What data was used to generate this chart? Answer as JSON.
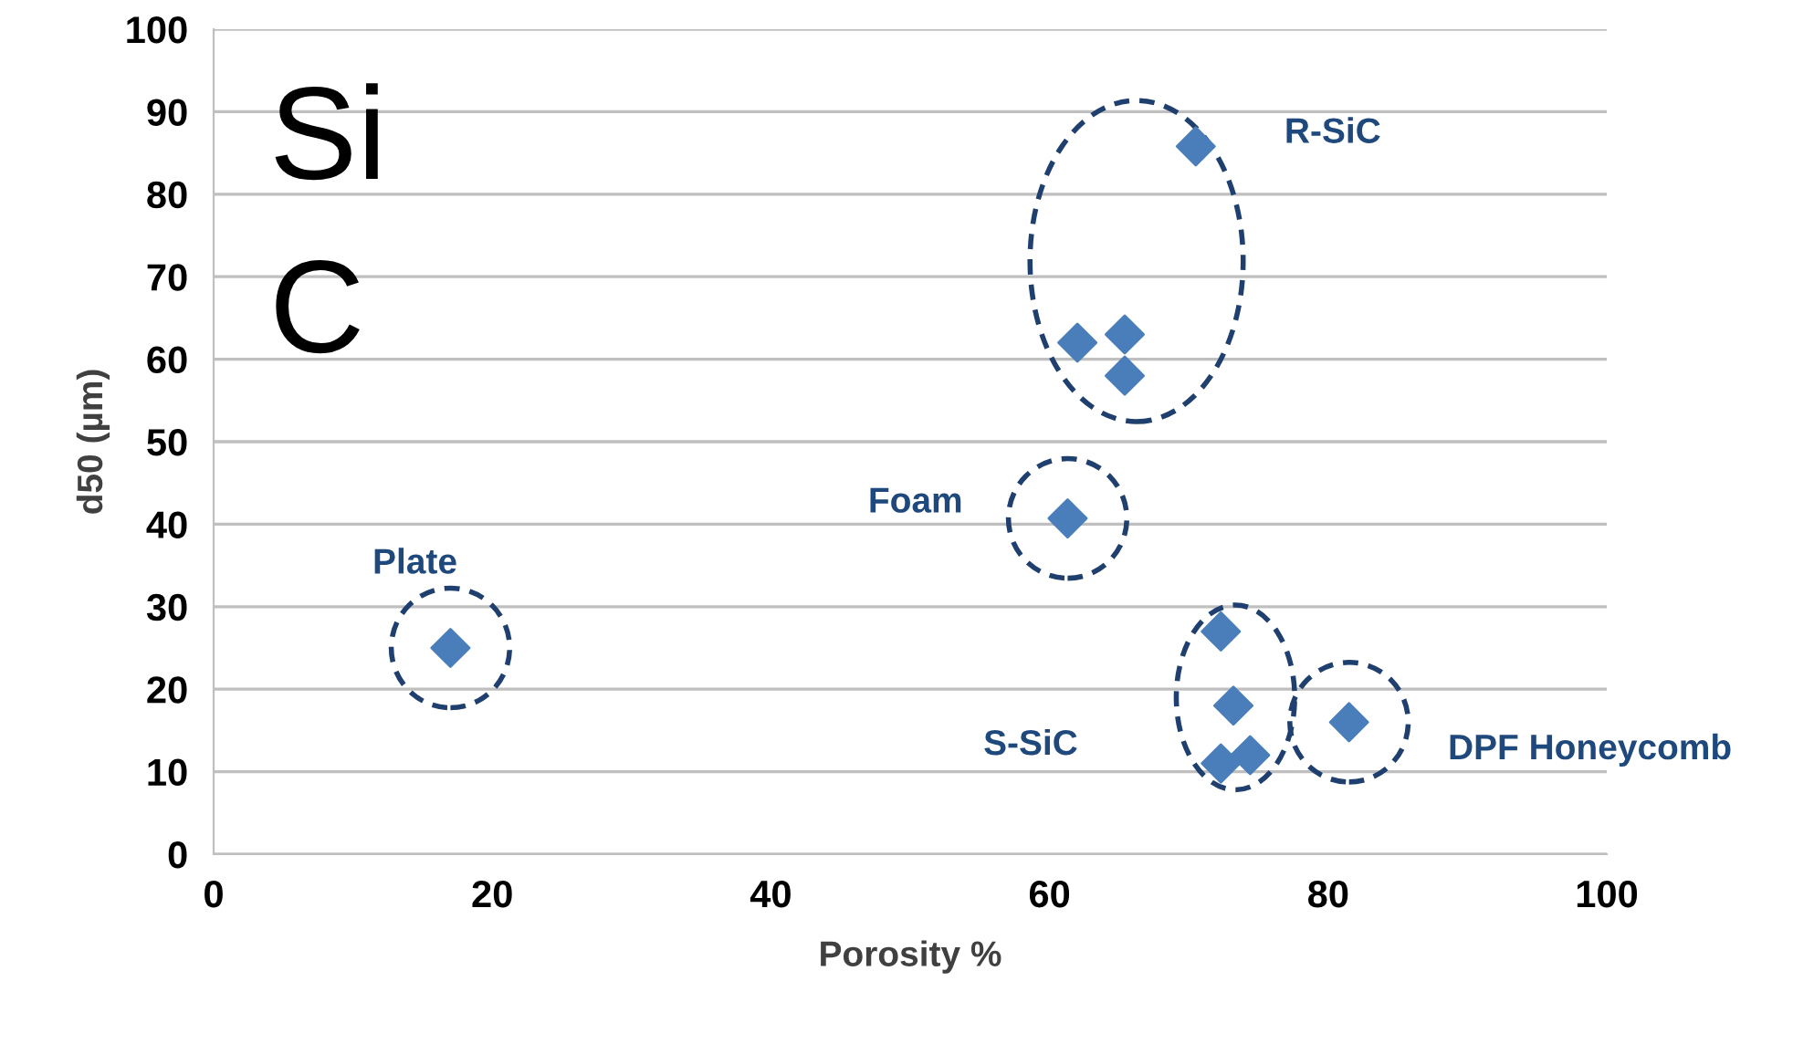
{
  "chart_data": {
    "type": "scatter",
    "xlabel": "Porosity %",
    "ylabel": "d50 (µm)",
    "xlim": [
      0,
      100
    ],
    "ylim": [
      0,
      100
    ],
    "xticks": [
      0,
      20,
      40,
      60,
      80,
      100
    ],
    "yticks": [
      0,
      10,
      20,
      30,
      40,
      50,
      60,
      70,
      80,
      90,
      100
    ],
    "grid": "y",
    "marker": "diamond",
    "series": [
      {
        "color": "#4a7ebb",
        "x": [
          17
        ],
        "values": [
          25
        ]
      },
      {
        "color": "#4a7ebb",
        "x": [
          61.3
        ],
        "values": [
          40.7
        ]
      },
      {
        "color": "#4a7ebb",
        "x": [
          70.5,
          62,
          65.4,
          65.4
        ],
        "values": [
          85.8,
          62,
          63,
          58
        ]
      },
      {
        "color": "#4a7ebb",
        "x": [
          72.3,
          73.2,
          72.3,
          74.4
        ],
        "values": [
          27,
          18,
          11,
          12
        ]
      },
      {
        "color": "#4a7ebb",
        "x": [
          81.5
        ],
        "values": [
          16
        ]
      }
    ],
    "annotations": [
      "Plate",
      "Foam",
      "R-SiC",
      "S-SiC",
      "DPF Honeycomb",
      "Si",
      "C"
    ]
  }
}
